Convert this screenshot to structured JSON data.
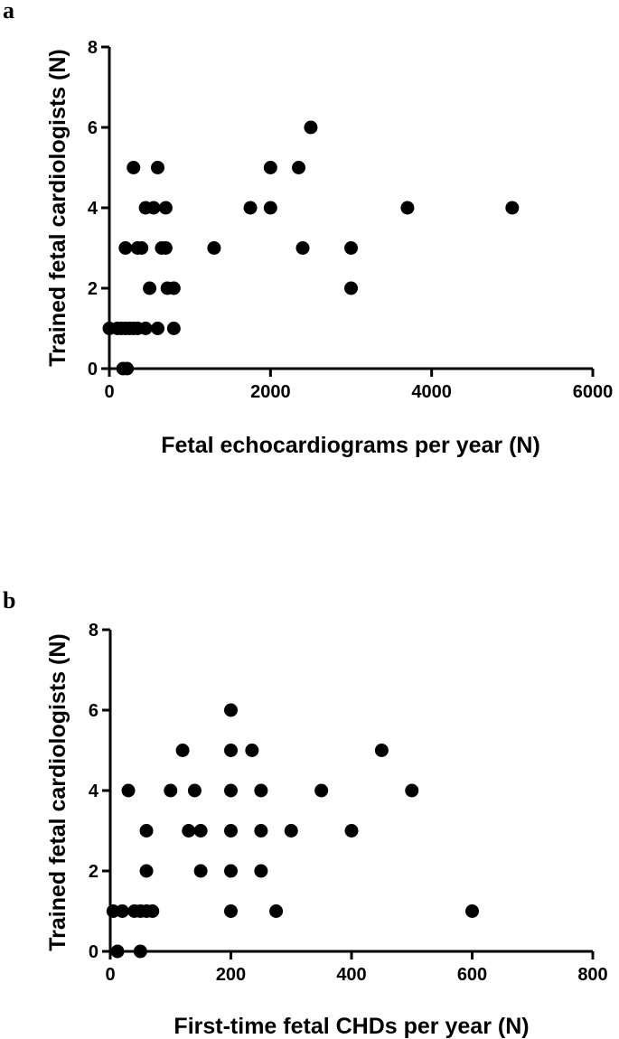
{
  "chart_data": [
    {
      "type": "scatter",
      "panel_label": "a",
      "xlabel": "Fetal echocardiograms per year (N)",
      "ylabel": "Trained fetal cardiologists (N)",
      "xlim": [
        0,
        6000
      ],
      "ylim": [
        0,
        8
      ],
      "xticks": [
        "0",
        "2000",
        "4000",
        "6000"
      ],
      "yticks": [
        "0",
        "2",
        "4",
        "6",
        "8"
      ],
      "grid": false,
      "legend": "none",
      "color": "#000000",
      "series": [
        {
          "points": [
            {
              "x": 0,
              "y": 1
            },
            {
              "x": 100,
              "y": 1
            },
            {
              "x": 150,
              "y": 1
            },
            {
              "x": 200,
              "y": 1
            },
            {
              "x": 250,
              "y": 1
            },
            {
              "x": 300,
              "y": 1
            },
            {
              "x": 350,
              "y": 1
            },
            {
              "x": 450,
              "y": 1
            },
            {
              "x": 600,
              "y": 1
            },
            {
              "x": 800,
              "y": 1
            },
            {
              "x": 170,
              "y": 0
            },
            {
              "x": 220,
              "y": 0
            },
            {
              "x": 500,
              "y": 2
            },
            {
              "x": 720,
              "y": 2
            },
            {
              "x": 800,
              "y": 2
            },
            {
              "x": 3000,
              "y": 2
            },
            {
              "x": 200,
              "y": 3
            },
            {
              "x": 350,
              "y": 3
            },
            {
              "x": 400,
              "y": 3
            },
            {
              "x": 650,
              "y": 3
            },
            {
              "x": 700,
              "y": 3
            },
            {
              "x": 1300,
              "y": 3
            },
            {
              "x": 2400,
              "y": 3
            },
            {
              "x": 3000,
              "y": 3
            },
            {
              "x": 450,
              "y": 4
            },
            {
              "x": 550,
              "y": 4
            },
            {
              "x": 700,
              "y": 4
            },
            {
              "x": 1750,
              "y": 4
            },
            {
              "x": 2000,
              "y": 4
            },
            {
              "x": 3700,
              "y": 4
            },
            {
              "x": 5000,
              "y": 4
            },
            {
              "x": 300,
              "y": 5
            },
            {
              "x": 600,
              "y": 5
            },
            {
              "x": 2000,
              "y": 5
            },
            {
              "x": 2350,
              "y": 5
            },
            {
              "x": 2500,
              "y": 6
            }
          ]
        }
      ]
    },
    {
      "type": "scatter",
      "panel_label": "b",
      "xlabel": "First-time fetal CHDs per year (N)",
      "ylabel": "Trained fetal cardiologists (N)",
      "xlim": [
        0,
        800
      ],
      "ylim": [
        0,
        8
      ],
      "xticks": [
        "0",
        "200",
        "400",
        "600",
        "800"
      ],
      "yticks": [
        "0",
        "2",
        "4",
        "6",
        "8"
      ],
      "grid": false,
      "legend": "none",
      "color": "#000000",
      "series": [
        {
          "points": [
            {
              "x": 5,
              "y": 1
            },
            {
              "x": 20,
              "y": 1
            },
            {
              "x": 40,
              "y": 1
            },
            {
              "x": 50,
              "y": 1
            },
            {
              "x": 60,
              "y": 1
            },
            {
              "x": 70,
              "y": 1
            },
            {
              "x": 200,
              "y": 1
            },
            {
              "x": 275,
              "y": 1
            },
            {
              "x": 600,
              "y": 1
            },
            {
              "x": 12,
              "y": 0
            },
            {
              "x": 50,
              "y": 0
            },
            {
              "x": 60,
              "y": 2
            },
            {
              "x": 150,
              "y": 2
            },
            {
              "x": 200,
              "y": 2
            },
            {
              "x": 250,
              "y": 2
            },
            {
              "x": 60,
              "y": 3
            },
            {
              "x": 130,
              "y": 3
            },
            {
              "x": 150,
              "y": 3
            },
            {
              "x": 200,
              "y": 3
            },
            {
              "x": 250,
              "y": 3
            },
            {
              "x": 300,
              "y": 3
            },
            {
              "x": 400,
              "y": 3
            },
            {
              "x": 30,
              "y": 4
            },
            {
              "x": 100,
              "y": 4
            },
            {
              "x": 140,
              "y": 4
            },
            {
              "x": 200,
              "y": 4
            },
            {
              "x": 250,
              "y": 4
            },
            {
              "x": 350,
              "y": 4
            },
            {
              "x": 500,
              "y": 4
            },
            {
              "x": 120,
              "y": 5
            },
            {
              "x": 200,
              "y": 5
            },
            {
              "x": 235,
              "y": 5
            },
            {
              "x": 450,
              "y": 5
            },
            {
              "x": 200,
              "y": 6
            }
          ]
        }
      ]
    }
  ]
}
